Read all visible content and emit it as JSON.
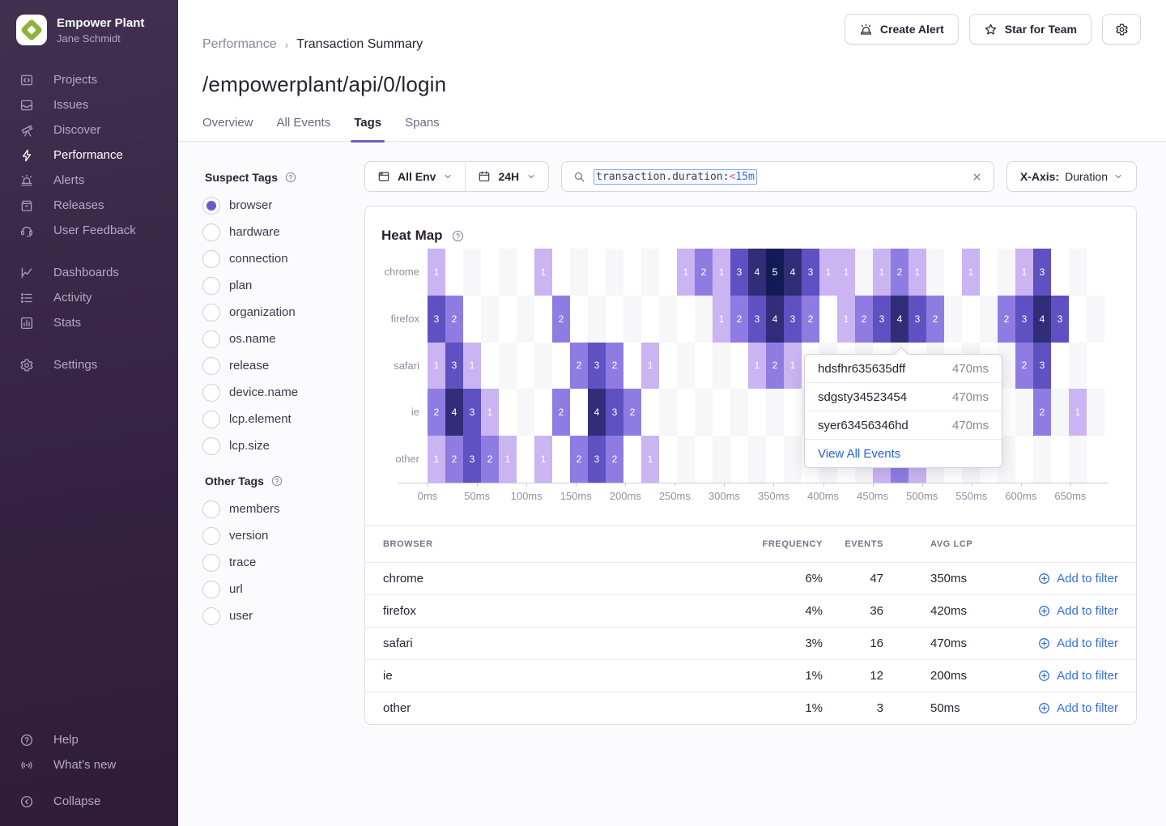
{
  "sidebar": {
    "org_name": "Empower Plant",
    "user_name": "Jane Schmidt",
    "active": "Performance",
    "sections": [
      {
        "items": [
          {
            "label": "Projects",
            "icon": "projects"
          },
          {
            "label": "Issues",
            "icon": "issues"
          },
          {
            "label": "Discover",
            "icon": "discover"
          },
          {
            "label": "Performance",
            "icon": "performance"
          },
          {
            "label": "Alerts",
            "icon": "alerts"
          },
          {
            "label": "Releases",
            "icon": "releases"
          },
          {
            "label": "User Feedback",
            "icon": "user-feedback"
          }
        ]
      },
      {
        "items": [
          {
            "label": "Dashboards",
            "icon": "dashboards"
          },
          {
            "label": "Activity",
            "icon": "activity"
          },
          {
            "label": "Stats",
            "icon": "stats"
          }
        ]
      },
      {
        "items": [
          {
            "label": "Settings",
            "icon": "settings"
          }
        ]
      }
    ],
    "footer_items": [
      {
        "label": "Help",
        "icon": "help"
      },
      {
        "label": "What’s new",
        "icon": "whats-new"
      }
    ],
    "collapse_label": "Collapse"
  },
  "breadcrumb": {
    "parent": "Performance",
    "separator": "›",
    "current": "Transaction Summary"
  },
  "page": {
    "title": "/empowerplant/api/0/login"
  },
  "actions": {
    "create_alert": "Create Alert",
    "star_for_team": "Star for Team"
  },
  "tabs": {
    "items": [
      "Overview",
      "All Events",
      "Tags",
      "Spans"
    ],
    "active": "Tags"
  },
  "filters": {
    "environment": "All Env",
    "time_range": "24H",
    "search": {
      "token_key": "transaction.duration:",
      "token_op": "<",
      "token_value": "15m"
    },
    "x_axis_label": "X-Axis:",
    "x_axis_value": "Duration"
  },
  "suspect_tags": {
    "title": "Suspect Tags",
    "selected": "browser",
    "items": [
      "browser",
      "hardware",
      "connection",
      "plan",
      "organization",
      "os.name",
      "release",
      "device.name",
      "lcp.element",
      "lcp.size"
    ]
  },
  "other_tags": {
    "title": "Other Tags",
    "selected": "",
    "items": [
      "members",
      "version",
      "trace",
      "url",
      "user"
    ]
  },
  "tooltip": {
    "events": [
      {
        "id": "hdsfhr635635dff",
        "duration": "470ms"
      },
      {
        "id": "sdgsty34523454",
        "duration": "470ms"
      },
      {
        "id": "syer63456346hd",
        "duration": "470ms"
      }
    ],
    "link": "View All Events"
  },
  "table": {
    "headers": [
      "BROWSER",
      "FREQUENCY",
      "EVENTS",
      "AVG LCP"
    ],
    "action_label": "Add to filter",
    "rows": [
      {
        "browser": "chrome",
        "frequency": "6%",
        "events": "47",
        "avg_lcp": "350ms"
      },
      {
        "browser": "firefox",
        "frequency": "4%",
        "events": "36",
        "avg_lcp": "420ms"
      },
      {
        "browser": "safari",
        "frequency": "3%",
        "events": "16",
        "avg_lcp": "470ms"
      },
      {
        "browser": "ie",
        "frequency": "1%",
        "events": "12",
        "avg_lcp": "200ms"
      },
      {
        "browser": "other",
        "frequency": "1%",
        "events": "3",
        "avg_lcp": "50ms"
      }
    ]
  },
  "chart_data": {
    "type": "heatmap",
    "title": "Heat Map",
    "x_axis": "Duration",
    "x_tick_labels": [
      "0ms",
      "50ms",
      "100ms",
      "150ms",
      "200ms",
      "250ms",
      "300ms",
      "350ms",
      "400ms",
      "450ms",
      "500ms",
      "550ms",
      "600ms",
      "650ms"
    ],
    "y_categories": [
      "chrome",
      "firefox",
      "safari",
      "ie",
      "other"
    ],
    "n_columns": 38,
    "legend_position": "none",
    "grid": "checkerboard",
    "value_colors": {
      "1": "#cab4f2",
      "2": "#8f7ce3",
      "3": "#5f51c1",
      "4": "#312d78",
      "5": "#131b57"
    },
    "cells": {
      "chrome": {
        "0": 1,
        "6": 1,
        "14": 1,
        "15": 2,
        "16": 1,
        "17": 3,
        "18": 4,
        "19": 5,
        "20": 4,
        "21": 3,
        "22": 1,
        "23": 1,
        "25": 1,
        "26": 2,
        "27": 1,
        "30": 1,
        "33": 1,
        "34": 3
      },
      "firefox": {
        "0": 3,
        "1": 2,
        "7": 2,
        "16": 1,
        "17": 2,
        "18": 3,
        "19": 4,
        "20": 3,
        "21": 2,
        "23": 1,
        "24": 2,
        "25": 3,
        "26": 4,
        "27": 3,
        "28": 2,
        "32": 2,
        "33": 3,
        "34": 4,
        "35": 3
      },
      "safari": {
        "0": 1,
        "1": 3,
        "2": 1,
        "8": 2,
        "9": 3,
        "10": 2,
        "12": 1,
        "18": 1,
        "19": 2,
        "20": 1,
        "33": 2,
        "34": 3
      },
      "ie": {
        "0": 2,
        "1": 4,
        "2": 3,
        "3": 1,
        "7": 2,
        "9": 4,
        "10": 3,
        "11": 2,
        "34": 2,
        "36": 1
      },
      "other": {
        "0": 1,
        "1": 2,
        "2": 3,
        "3": 2,
        "4": 1,
        "6": 1,
        "8": 2,
        "9": 3,
        "10": 2,
        "12": 1,
        "25": 1,
        "26": 2,
        "27": 1
      }
    }
  }
}
